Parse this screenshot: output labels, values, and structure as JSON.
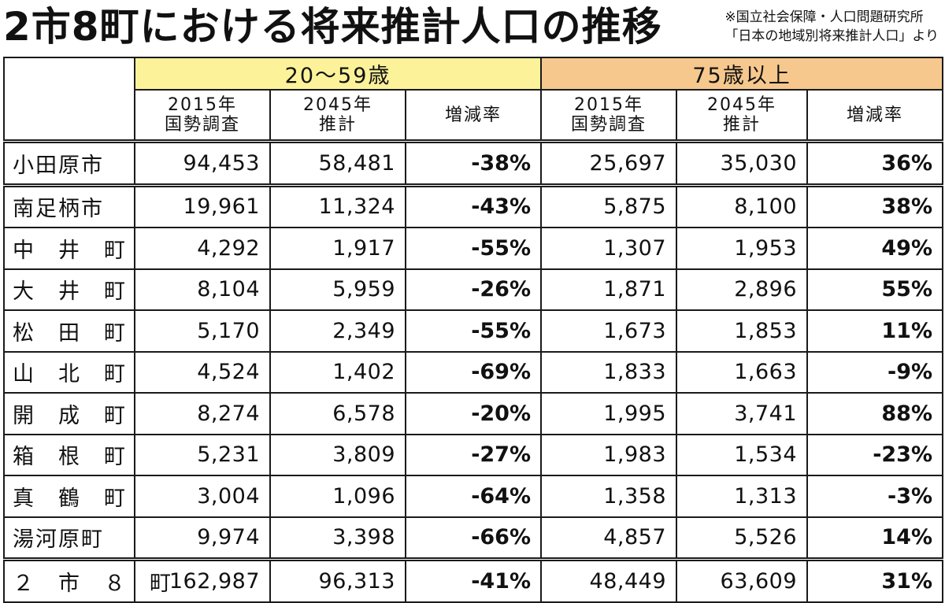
{
  "title": "2市8町における将来推計人口の推移",
  "source": {
    "line1": "※国立社会保障・人口問題研究所",
    "line2": "「日本の地域別将来推計人口」より"
  },
  "chart_data": {
    "type": "table",
    "groups": [
      {
        "label": "20～59歳",
        "color": "#fbf29a"
      },
      {
        "label": "75歳以上",
        "color": "#f6c88d"
      }
    ],
    "subheaders": [
      {
        "line1": "2015年",
        "line2": "国勢調査"
      },
      {
        "line1": "2045年",
        "line2": "推計"
      },
      {
        "line1": "増減率",
        "line2": ""
      },
      {
        "line1": "2015年",
        "line2": "国勢調査"
      },
      {
        "line1": "2045年",
        "line2": "推計"
      },
      {
        "line1": "増減率",
        "line2": ""
      }
    ],
    "rows": [
      {
        "name": "小田原市",
        "cells": [
          "94,453",
          "58,481",
          "-38%",
          "25,697",
          "35,030",
          "36%"
        ]
      },
      {
        "name": "南足柄市",
        "cells": [
          "19,961",
          "11,324",
          "-43%",
          "5,875",
          "8,100",
          "38%"
        ]
      },
      {
        "name": "中　井　町",
        "cells": [
          "4,292",
          "1,917",
          "-55%",
          "1,307",
          "1,953",
          "49%"
        ]
      },
      {
        "name": "大　井　町",
        "cells": [
          "8,104",
          "5,959",
          "-26%",
          "1,871",
          "2,896",
          "55%"
        ]
      },
      {
        "name": "松　田　町",
        "cells": [
          "5,170",
          "2,349",
          "-55%",
          "1,673",
          "1,853",
          "11%"
        ]
      },
      {
        "name": "山　北　町",
        "cells": [
          "4,524",
          "1,402",
          "-69%",
          "1,833",
          "1,663",
          "-9%"
        ]
      },
      {
        "name": "開　成　町",
        "cells": [
          "8,274",
          "6,578",
          "-20%",
          "1,995",
          "3,741",
          "88%"
        ]
      },
      {
        "name": "箱　根　町",
        "cells": [
          "5,231",
          "3,809",
          "-27%",
          "1,983",
          "1,534",
          "-23%"
        ]
      },
      {
        "name": "真　鶴　町",
        "cells": [
          "3,004",
          "1,096",
          "-64%",
          "1,358",
          "1,313",
          "-3%"
        ]
      },
      {
        "name": "湯河原町",
        "cells": [
          "9,974",
          "3,398",
          "-66%",
          "4,857",
          "5,526",
          "14%"
        ]
      },
      {
        "name": "２　市　８　町",
        "cells": [
          "162,987",
          "96,313",
          "-41%",
          "48,449",
          "63,609",
          "31%"
        ]
      }
    ]
  }
}
